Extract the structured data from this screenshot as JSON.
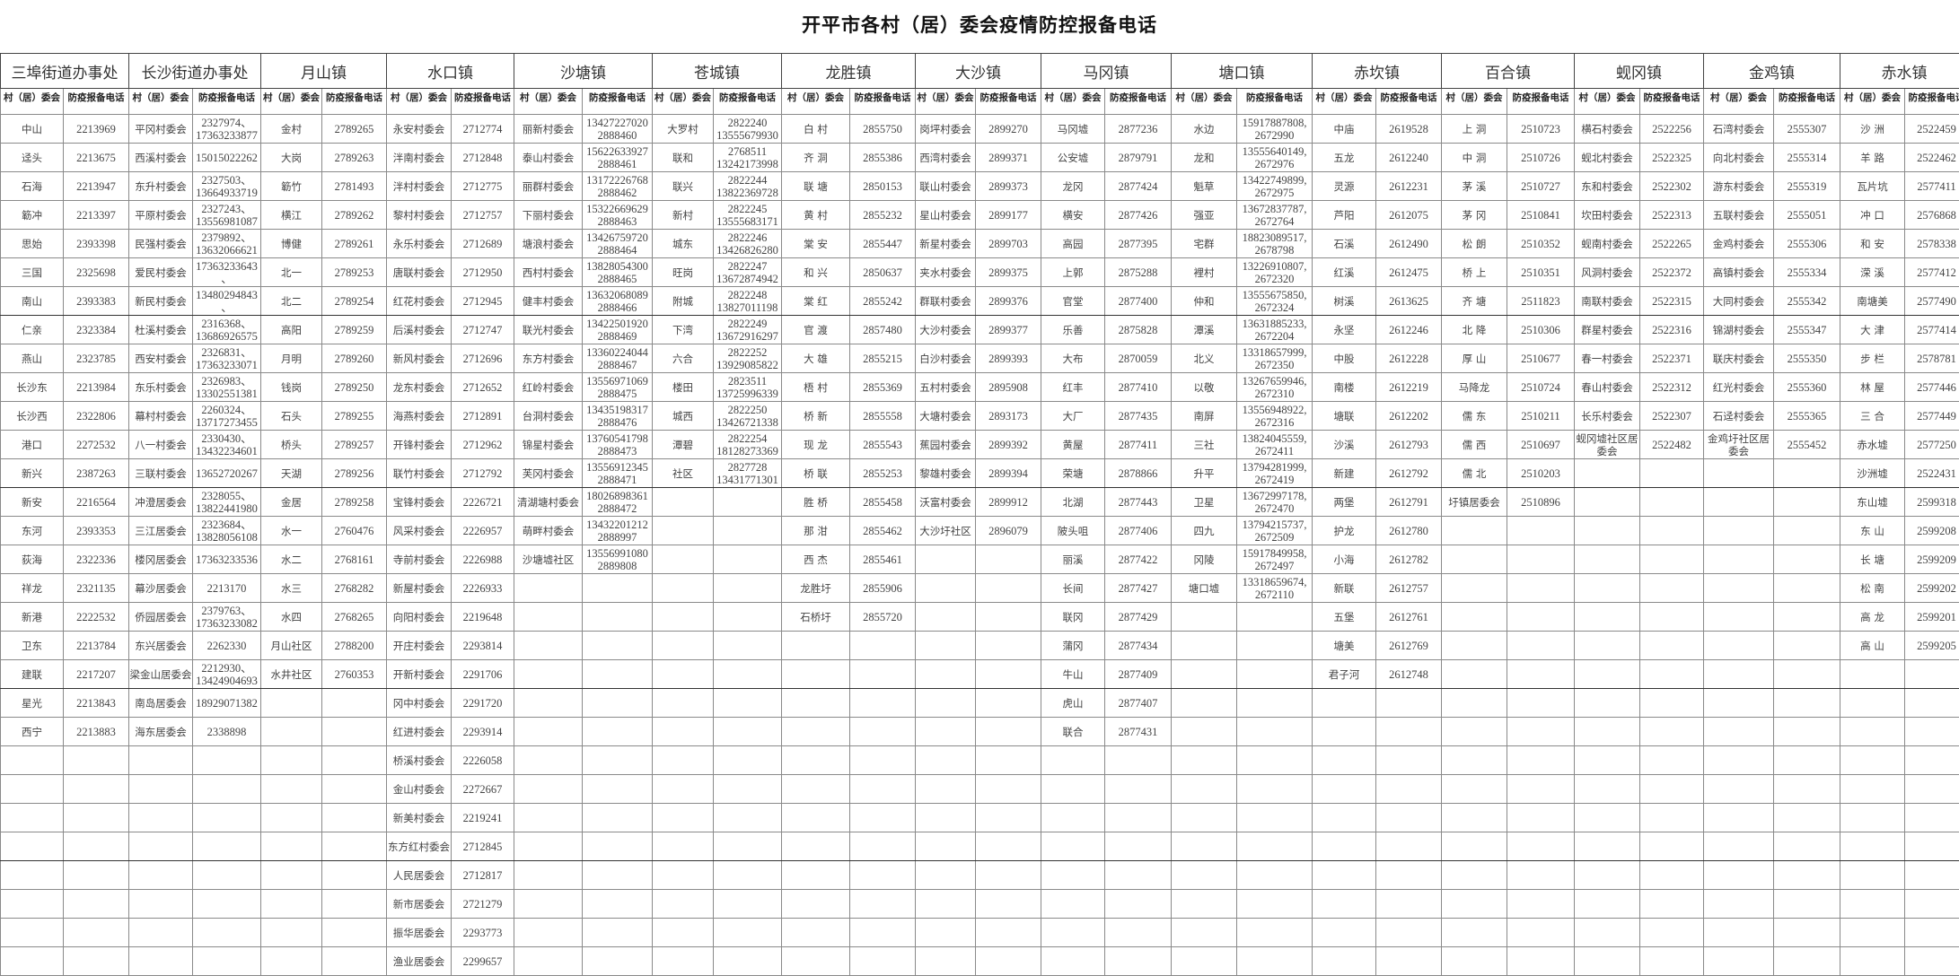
{
  "title": "开平市各村（居）委会疫情防控报备电话",
  "column_headers": {
    "name": "村（居）委会",
    "phone": "防疫报备电话"
  },
  "districts": [
    {
      "name": "三埠街道办事处",
      "rows": [
        [
          "中山",
          "2213969"
        ],
        [
          "迳头",
          "2213675"
        ],
        [
          "石海",
          "2213947"
        ],
        [
          "簕冲",
          "2213397"
        ],
        [
          "思始",
          "2393398"
        ],
        [
          "三国",
          "2325698"
        ],
        [
          "南山",
          "2393383"
        ],
        [
          "仁亲",
          "2323384"
        ],
        [
          "燕山",
          "2323785"
        ],
        [
          "长沙东",
          "2213984"
        ],
        [
          "长沙西",
          "2322806"
        ],
        [
          "港口",
          "2272532"
        ],
        [
          "新兴",
          "2387263"
        ],
        [
          "新安",
          "2216564"
        ],
        [
          "东河",
          "2393353"
        ],
        [
          "荻海",
          "2322336"
        ],
        [
          "祥龙",
          "2321135"
        ],
        [
          "新港",
          "2222532"
        ],
        [
          "卫东",
          "2213784"
        ],
        [
          "建联",
          "2217207"
        ],
        [
          "星光",
          "2213843"
        ],
        [
          "西宁",
          "2213883"
        ]
      ]
    },
    {
      "name": "长沙街道办事处",
      "rows": [
        [
          "平冈村委会",
          "2327974、\n17363233877"
        ],
        [
          "西溪村委会",
          "15015022262"
        ],
        [
          "东升村委会",
          "2327503、\n13664933719"
        ],
        [
          "平原村委会",
          "2327243、\n13556981087"
        ],
        [
          "民强村委会",
          "2379892、\n13632066621"
        ],
        [
          "爱民村委会",
          "17363233643\n、"
        ],
        [
          "新民村委会",
          "13480294843\n、"
        ],
        [
          "杜溪村委会",
          "2316368、\n13686926575"
        ],
        [
          "西安村委会",
          "2326831、\n17363233071"
        ],
        [
          "东乐村委会",
          "2326983、\n13302551381"
        ],
        [
          "幕村村委会",
          "2260324、\n13717273455"
        ],
        [
          "八一村委会",
          "2330430、\n13432234601"
        ],
        [
          "三联村委会",
          "13652720267"
        ],
        [
          "冲澄居委会",
          "2328055、\n13822441980"
        ],
        [
          "三江居委会",
          "2323684、\n13828056108"
        ],
        [
          "楼冈居委会",
          "17363233536"
        ],
        [
          "幕沙居委会",
          "2213170"
        ],
        [
          "侨园居委会",
          "2379763、\n17363233082"
        ],
        [
          "东兴居委会",
          "2262330"
        ],
        [
          "梁金山居委会",
          "2212930、\n13424904693"
        ],
        [
          "南岛居委会",
          "18929071382"
        ],
        [
          "海东居委会",
          "2338898"
        ]
      ]
    },
    {
      "name": "月山镇",
      "rows": [
        [
          "金村",
          "2789265"
        ],
        [
          "大岗",
          "2789263"
        ],
        [
          "簕竹",
          "2781493"
        ],
        [
          "横江",
          "2789262"
        ],
        [
          "博健",
          "2789261"
        ],
        [
          "北一",
          "2789253"
        ],
        [
          "北二",
          "2789254"
        ],
        [
          "高阳",
          "2789259"
        ],
        [
          "月明",
          "2789260"
        ],
        [
          "钱岗",
          "2789250"
        ],
        [
          "石头",
          "2789255"
        ],
        [
          "桥头",
          "2789257"
        ],
        [
          "天湖",
          "2789256"
        ],
        [
          "金居",
          "2789258"
        ],
        [
          "水一",
          "2760476"
        ],
        [
          "水二",
          "2768161"
        ],
        [
          "水三",
          "2768282"
        ],
        [
          "水四",
          "2768265"
        ],
        [
          "月山社区",
          "2788200"
        ],
        [
          "水井社区",
          "2760353"
        ]
      ]
    },
    {
      "name": "水口镇",
      "rows": [
        [
          "永安村委会",
          "2712774"
        ],
        [
          "泮南村委会",
          "2712848"
        ],
        [
          "泮村村委会",
          "2712775"
        ],
        [
          "黎村村委会",
          "2712757"
        ],
        [
          "永乐村委会",
          "2712689"
        ],
        [
          "唐联村委会",
          "2712950"
        ],
        [
          "红花村委会",
          "2712945"
        ],
        [
          "后溪村委会",
          "2712747"
        ],
        [
          "新风村委会",
          "2712696"
        ],
        [
          "龙东村委会",
          "2712652"
        ],
        [
          "海燕村委会",
          "2712891"
        ],
        [
          "开锋村委会",
          "2712962"
        ],
        [
          "联竹村委会",
          "2712792"
        ],
        [
          "宝锋村委会",
          "2226721"
        ],
        [
          "风采村委会",
          "2226957"
        ],
        [
          "寺前村委会",
          "2226988"
        ],
        [
          "新屋村委会",
          "2226933"
        ],
        [
          "向阳村委会",
          "2219648"
        ],
        [
          "开庄村委会",
          "2293814"
        ],
        [
          "开新村委会",
          "2291706"
        ],
        [
          "冈中村委会",
          "2291720"
        ],
        [
          "红进村委会",
          "2293914"
        ],
        [
          "桥溪村委会",
          "2226058"
        ],
        [
          "金山村委会",
          "2272667"
        ],
        [
          "新美村委会",
          "2219241"
        ],
        [
          "东方红村委会",
          "2712845"
        ],
        [
          "人民居委会",
          "2712817"
        ],
        [
          "新市居委会",
          "2721279"
        ],
        [
          "振华居委会",
          "2293773"
        ],
        [
          "渔业居委会",
          "2299657"
        ]
      ]
    },
    {
      "name": "沙塘镇",
      "rows": [
        [
          "丽新村委会",
          "13427227020\n2888460"
        ],
        [
          "泰山村委会",
          "15622633927\n2888461"
        ],
        [
          "丽群村委会",
          "13172226768\n2888462"
        ],
        [
          "下丽村委会",
          "15322669629\n2888463"
        ],
        [
          "塘浪村委会",
          "13426759720\n2888464"
        ],
        [
          "西村村委会",
          "13828054300\n2888465"
        ],
        [
          "健丰村委会",
          "13632068089\n2888466"
        ],
        [
          "联光村委会",
          "13422501920\n2888469"
        ],
        [
          "东方村委会",
          "13360224044\n2888467"
        ],
        [
          "红岭村委会",
          "13556971069\n2888475"
        ],
        [
          "台洞村委会",
          "13435198317\n2888476"
        ],
        [
          "锦星村委会",
          "13760541798\n2888473"
        ],
        [
          "芙冈村委会",
          "13556912345\n2888471"
        ],
        [
          "清湖塘村委会",
          "18026898361\n2888472"
        ],
        [
          "萌畔村委会",
          "13432201212\n2888997"
        ],
        [
          "沙塘墟社区",
          "13556991080\n2889808"
        ]
      ]
    },
    {
      "name": "苍城镇",
      "rows": [
        [
          "大罗村",
          "2822240\n13555679930"
        ],
        [
          "联和",
          "2768511\n13242173998"
        ],
        [
          "联兴",
          "2822244\n13822369728"
        ],
        [
          "新村",
          "2822245\n13555683171"
        ],
        [
          "城东",
          "2822246\n13426826280"
        ],
        [
          "旺岗",
          "2822247\n13672874942"
        ],
        [
          "附城",
          "2822248\n13827011198"
        ],
        [
          "下湾",
          "2822249\n13672916297"
        ],
        [
          "六合",
          "2822252\n13929085822"
        ],
        [
          "楼田",
          "2823511\n13725996339"
        ],
        [
          "城西",
          "2822250\n13426721338"
        ],
        [
          "潭碧",
          "2822254\n18128273369"
        ],
        [
          "社区",
          "2827728\n13431771301"
        ]
      ]
    },
    {
      "name": "龙胜镇",
      "rows": [
        [
          "白 村",
          "2855750"
        ],
        [
          "齐 洞",
          "2855386"
        ],
        [
          "联 塘",
          "2850153"
        ],
        [
          "黄 村",
          "2855232"
        ],
        [
          "棠 安",
          "2855447"
        ],
        [
          "和 兴",
          "2850637"
        ],
        [
          "棠 红",
          "2855242"
        ],
        [
          "官 渡",
          "2857480"
        ],
        [
          "大 雄",
          "2855215"
        ],
        [
          "梧 村",
          "2855369"
        ],
        [
          "桥 新",
          "2855558"
        ],
        [
          "现 龙",
          "2855543"
        ],
        [
          "桥 联",
          "2855253"
        ],
        [
          "胜 桥",
          "2855458"
        ],
        [
          "那 泔",
          "2855462"
        ],
        [
          "西 杰",
          "2855461"
        ],
        [
          "龙胜圩",
          "2855906"
        ],
        [
          "石桥圩",
          "2855720"
        ]
      ]
    },
    {
      "name": "大沙镇",
      "rows": [
        [
          "岗坪村委会",
          "2899270"
        ],
        [
          "西湾村委会",
          "2899371"
        ],
        [
          "联山村委会",
          "2899373"
        ],
        [
          "星山村委会",
          "2899177"
        ],
        [
          "新星村委会",
          "2899703"
        ],
        [
          "夹水村委会",
          "2899375"
        ],
        [
          "群联村委会",
          "2899376"
        ],
        [
          "大沙村委会",
          "2899377"
        ],
        [
          "白沙村委会",
          "2899393"
        ],
        [
          "五村村委会",
          "2895908"
        ],
        [
          "大塘村委会",
          "2893173"
        ],
        [
          "蕉园村委会",
          "2899392"
        ],
        [
          "黎雄村委会",
          "2899394"
        ],
        [
          "沃富村委会",
          "2899912"
        ],
        [
          "大沙圩社区",
          "2896079"
        ]
      ]
    },
    {
      "name": "马冈镇",
      "rows": [
        [
          "马冈墟",
          "2877236"
        ],
        [
          "公安墟",
          "2879791"
        ],
        [
          "龙冈",
          "2877424"
        ],
        [
          "横安",
          "2877426"
        ],
        [
          "高园",
          "2877395"
        ],
        [
          "上郭",
          "2875288"
        ],
        [
          "官堂",
          "2877400"
        ],
        [
          "乐善",
          "2875828"
        ],
        [
          "大布",
          "2870059"
        ],
        [
          "红丰",
          "2877410"
        ],
        [
          "大厂",
          "2877435"
        ],
        [
          "黄屋",
          "2877411"
        ],
        [
          "荣塘",
          "2878866"
        ],
        [
          "北湖",
          "2877443"
        ],
        [
          "陂头咀",
          "2877406"
        ],
        [
          "丽溪",
          "2877422"
        ],
        [
          "长间",
          "2877427"
        ],
        [
          "联冈",
          "2877429"
        ],
        [
          "蒲冈",
          "2877434"
        ],
        [
          "牛山",
          "2877409"
        ],
        [
          "虎山",
          "2877407"
        ],
        [
          "联合",
          "2877431"
        ]
      ]
    },
    {
      "name": "塘口镇",
      "rows": [
        [
          "水边",
          "15917887808,\n2672990"
        ],
        [
          "龙和",
          "13555640149,\n2672976"
        ],
        [
          "魁草",
          "13422749899,\n2672975"
        ],
        [
          "强亚",
          "13672837787,\n2672764"
        ],
        [
          "宅群",
          "18823089517,\n2678798"
        ],
        [
          "裡村",
          "13226910807,\n2672320"
        ],
        [
          "仲和",
          "13555675850,\n2672324"
        ],
        [
          "潭溪",
          "13631885233,\n2672204"
        ],
        [
          "北义",
          "13318657999,\n2672350"
        ],
        [
          "以敬",
          "13267659946,\n2672310"
        ],
        [
          "南屏",
          "13556948922,\n2672316"
        ],
        [
          "三社",
          "13824045559,\n2672411"
        ],
        [
          "升平",
          "13794281999,\n2672419"
        ],
        [
          "卫星",
          "13672997178,\n2672470"
        ],
        [
          "四九",
          "13794215737,\n2672509"
        ],
        [
          "冈陵",
          "15917849958,\n2672497"
        ],
        [
          "塘口墟",
          "13318659674,\n2672110"
        ]
      ]
    },
    {
      "name": "赤坎镇",
      "rows": [
        [
          "中庙",
          "2619528"
        ],
        [
          "五龙",
          "2612240"
        ],
        [
          "灵源",
          "2612231"
        ],
        [
          "芦阳",
          "2612075"
        ],
        [
          "石溪",
          "2612490"
        ],
        [
          "红溪",
          "2612475"
        ],
        [
          "树溪",
          "2613625"
        ],
        [
          "永坚",
          "2612246"
        ],
        [
          "中股",
          "2612228"
        ],
        [
          "南楼",
          "2612219"
        ],
        [
          "塘联",
          "2612202"
        ],
        [
          "沙溪",
          "2612793"
        ],
        [
          "新建",
          "2612792"
        ],
        [
          "两堡",
          "2612791"
        ],
        [
          "护龙",
          "2612780"
        ],
        [
          "小海",
          "2612782"
        ],
        [
          "新联",
          "2612757"
        ],
        [
          "五堡",
          "2612761"
        ],
        [
          "塘美",
          "2612769"
        ],
        [
          "君子河",
          "2612748"
        ]
      ]
    },
    {
      "name": "百合镇",
      "rows": [
        [
          "上 洞",
          "2510723"
        ],
        [
          "中 洞",
          "2510726"
        ],
        [
          "茅 溪",
          "2510727"
        ],
        [
          "茅 冈",
          "2510841"
        ],
        [
          "松 朗",
          "2510352"
        ],
        [
          "桥 上",
          "2510351"
        ],
        [
          "齐  塘",
          "2511823"
        ],
        [
          "北 降",
          "2510306"
        ],
        [
          "厚 山",
          "2510677"
        ],
        [
          "马降龙",
          "2510724"
        ],
        [
          "儒 东",
          "2510211"
        ],
        [
          "儒 西",
          "2510697"
        ],
        [
          "儒 北",
          "2510203"
        ],
        [
          "圩镇居委会",
          "2510896"
        ]
      ]
    },
    {
      "name": "蚬冈镇",
      "rows": [
        [
          "横石村委会",
          "2522256"
        ],
        [
          "蚬北村委会",
          "2522325"
        ],
        [
          "东和村委会",
          "2522302"
        ],
        [
          "坎田村委会",
          "2522313"
        ],
        [
          "蚬南村委会",
          "2522265"
        ],
        [
          "风洞村委会",
          "2522372"
        ],
        [
          "南联村委会",
          "2522315"
        ],
        [
          "群星村委会",
          "2522316"
        ],
        [
          "春一村委会",
          "2522371"
        ],
        [
          "春山村委会",
          "2522312"
        ],
        [
          "长乐村委会",
          "2522307"
        ],
        [
          "蚬冈墟社区居委会",
          "2522482"
        ]
      ]
    },
    {
      "name": "金鸡镇",
      "rows": [
        [
          "石湾村委会",
          "2555307"
        ],
        [
          "向北村委会",
          "2555314"
        ],
        [
          "游东村委会",
          "2555319"
        ],
        [
          "五联村委会",
          "2555051"
        ],
        [
          "金鸡村委会",
          "2555306"
        ],
        [
          "高镇村委会",
          "2555334"
        ],
        [
          "大同村委会",
          "2555342"
        ],
        [
          "锦湖村委会",
          "2555347"
        ],
        [
          "联庆村委会",
          "2555350"
        ],
        [
          "红光村委会",
          "2555360"
        ],
        [
          "石迳村委会",
          "2555365"
        ],
        [
          "金鸡圩社区居委会",
          "2555452"
        ]
      ]
    },
    {
      "name": "赤水镇",
      "rows": [
        [
          "沙  洲",
          "2522459"
        ],
        [
          "羊  路",
          "2522462"
        ],
        [
          "瓦片坑",
          "2577411"
        ],
        [
          "冲  口",
          "2576868"
        ],
        [
          "和  安",
          "2578338"
        ],
        [
          "溁  溪",
          "2577412"
        ],
        [
          "南塘美",
          "2577490"
        ],
        [
          "大  津",
          "2577414"
        ],
        [
          "步  栏",
          "2578781"
        ],
        [
          "林  屋",
          "2577446"
        ],
        [
          "三  合",
          "2577449"
        ],
        [
          "赤水墟",
          "2577250"
        ],
        [
          "沙洲墟",
          "2522431"
        ],
        [
          "东山墟",
          "2599318"
        ],
        [
          "东  山",
          "2599208"
        ],
        [
          "长  塘",
          "2599209"
        ],
        [
          "松  南",
          "2599202"
        ],
        [
          "高  龙",
          "2599201"
        ],
        [
          "高  山",
          "2599205"
        ]
      ]
    }
  ]
}
